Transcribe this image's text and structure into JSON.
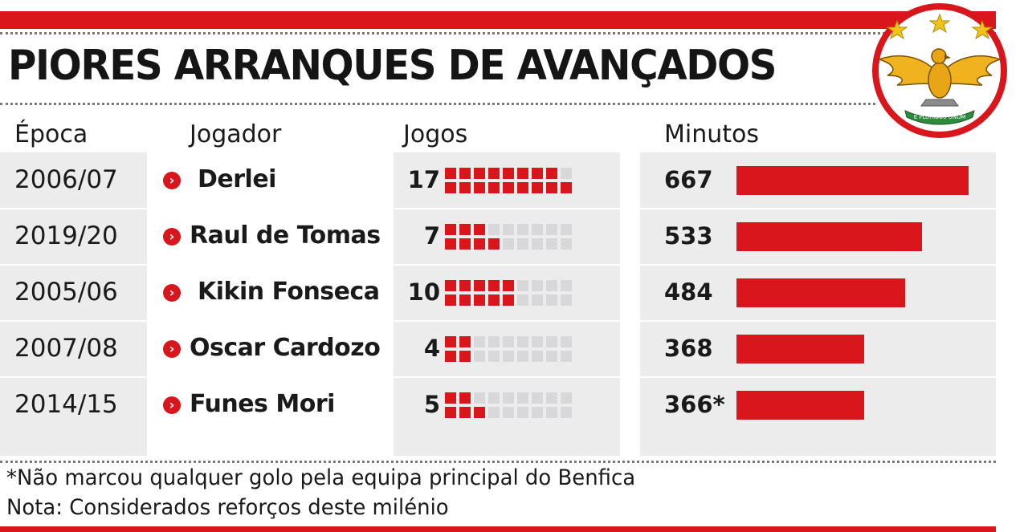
{
  "title": "PIORES ARRANQUES DE AVANÇADOS",
  "headers": {
    "epoca": "Época",
    "jogador": "Jogador",
    "jogos": "Jogos",
    "minutos": "Minutos"
  },
  "rows": [
    {
      "epoca": "2006/07",
      "jogador": "Derlei",
      "jogos": "17",
      "minutos": "667"
    },
    {
      "epoca": "2019/20",
      "jogador": "Raul de Tomas",
      "jogos": "7",
      "minutos": "533"
    },
    {
      "epoca": "2005/06",
      "jogador": "Kikin Fonseca",
      "jogos": "10",
      "minutos": "484"
    },
    {
      "epoca": "2007/08",
      "jogador": "Oscar Cardozo",
      "jogos": "4",
      "minutos": "368"
    },
    {
      "epoca": "2014/15",
      "jogador": "Funes Mori",
      "jogos": "5",
      "minutos": "366*"
    }
  ],
  "footnotes": {
    "asterisk": "*Não marcou qualquer golo pela equipa principal do Benfica",
    "nota": "Nota: Considerados reforços deste milénio"
  },
  "logo": {
    "motto": "E PLURIBUS UNUM"
  },
  "chart_data": {
    "type": "table",
    "title": "PIORES ARRANQUES DE AVANÇADOS",
    "columns": [
      "Época",
      "Jogador",
      "Jogos",
      "Minutos"
    ],
    "categories": [
      "Derlei",
      "Raul de Tomas",
      "Kikin Fonseca",
      "Oscar Cardozo",
      "Funes Mori"
    ],
    "epocas": [
      "2006/07",
      "2019/20",
      "2005/06",
      "2007/08",
      "2014/15"
    ],
    "jogos": [
      17,
      7,
      10,
      4,
      5
    ],
    "jogos_max": 18,
    "minutos": [
      667,
      533,
      484,
      368,
      366
    ],
    "minutos_max": 667
  },
  "colors": {
    "accent": "#d9161c",
    "panel": "#ececed",
    "square_off": "#d8d8da",
    "text": "#1a1a1a"
  },
  "icons": {
    "row_marker": "chevron-right-icon"
  }
}
